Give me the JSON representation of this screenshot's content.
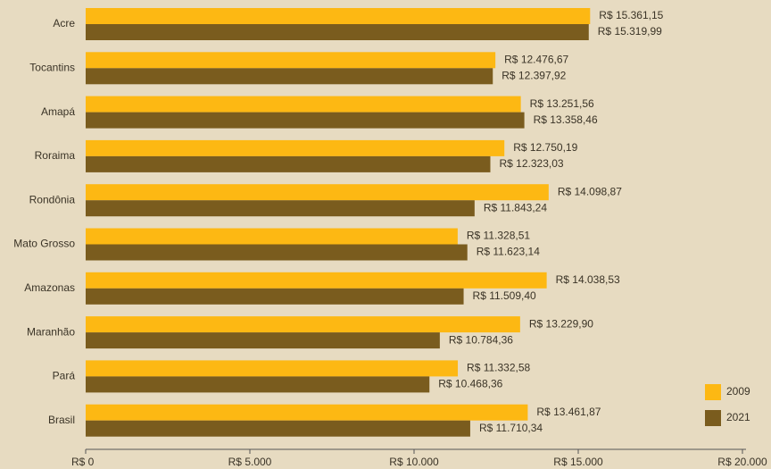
{
  "chart_data": {
    "type": "bar",
    "orientation": "horizontal",
    "categories": [
      "Acre",
      "Tocantins",
      "Amapá",
      "Roraima",
      "Rondônia",
      "Mato Grosso",
      "Amazonas",
      "Maranhão",
      "Pará",
      "Brasil"
    ],
    "series": [
      {
        "name": "2009",
        "color": "#fdb813",
        "values": [
          15361.15,
          12476.67,
          13251.56,
          12750.19,
          14098.87,
          11328.51,
          14038.53,
          13229.9,
          11332.58,
          13461.87
        ],
        "value_labels": [
          "R$ 15.361,15",
          "R$ 12.476,67",
          "R$ 13.251,56",
          "R$ 12.750,19",
          "R$ 14.098,87",
          "R$ 11.328,51",
          "R$ 14.038,53",
          "R$ 13.229,90",
          "R$ 11.332,58",
          "R$ 13.461,87"
        ]
      },
      {
        "name": "2021",
        "color": "#7a5c1e",
        "values": [
          15319.99,
          12397.92,
          13358.46,
          12323.03,
          11843.24,
          11623.14,
          11509.4,
          10784.36,
          10468.36,
          11710.34
        ],
        "value_labels": [
          "R$ 15.319,99",
          "R$ 12.397,92",
          "R$ 13.358,46",
          "R$ 12.323,03",
          "R$ 11.843,24",
          "R$ 11.623,14",
          "R$ 11.509,40",
          "R$ 10.784,36",
          "R$ 10.468,36",
          "R$ 11.710,34"
        ]
      }
    ],
    "xlim": [
      0,
      20000
    ],
    "xticks": [
      {
        "value": 0,
        "label": "R$ 0"
      },
      {
        "value": 5000,
        "label": "R$ 5.000"
      },
      {
        "value": 10000,
        "label": "R$ 10.000"
      },
      {
        "value": 15000,
        "label": "R$ 15.000"
      },
      {
        "value": 20000,
        "label": "R$ 20.000"
      }
    ],
    "legend": "lower right"
  }
}
